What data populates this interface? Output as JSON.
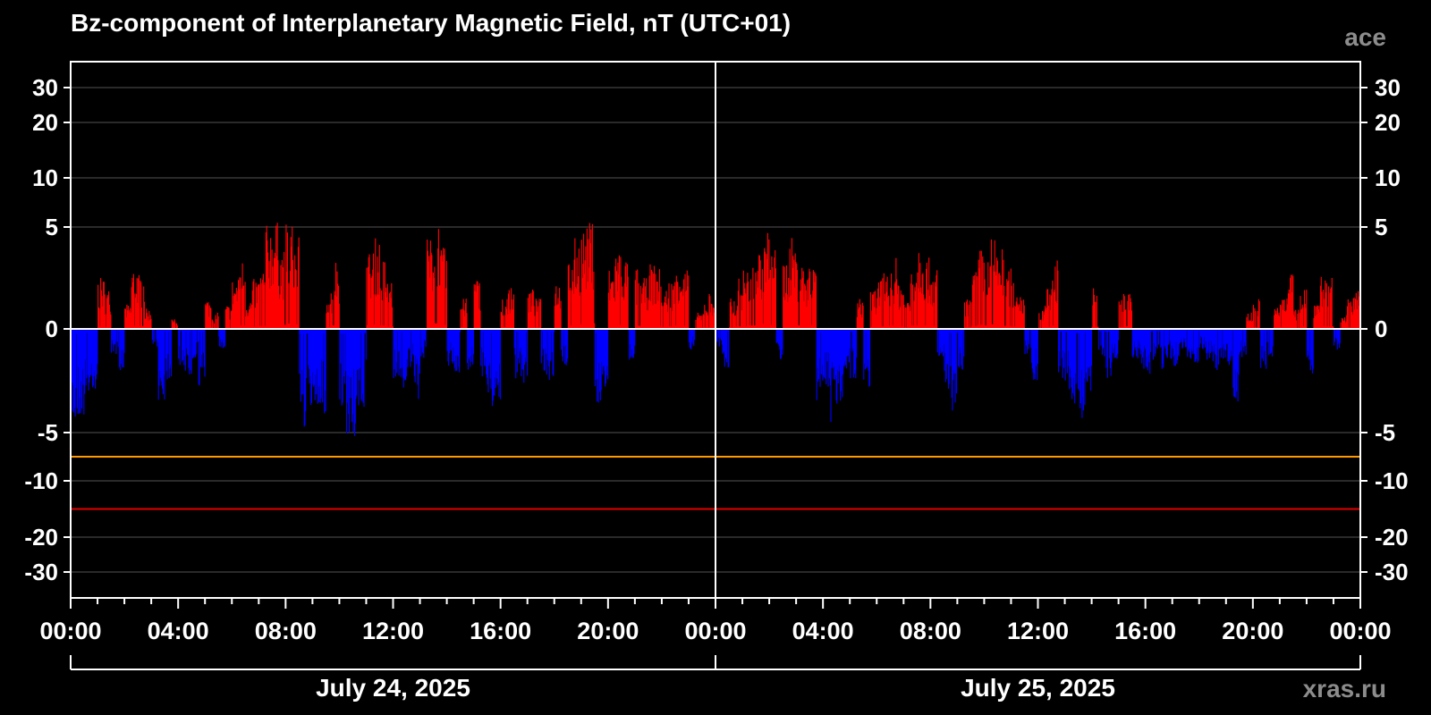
{
  "title": "Bz-component of Interplanetary Magnetic Field, nT (UTC+01)",
  "source_label": "ace",
  "site_label": "xras.ru",
  "colors": {
    "background": "#000000",
    "positive_bar": "#ff0000",
    "negative_bar": "#0000ff",
    "zero_line": "#ffffff",
    "grid": "#555555",
    "threshold_orange": "#ff9900",
    "threshold_red": "#e00000",
    "source_text": "#8c8c8c"
  },
  "chart_data": {
    "type": "bar",
    "title": "Bz-component of Interplanetary Magnetic Field, nT (UTC+01)",
    "xlabel": "",
    "ylabel": "",
    "y_scale": "compressed (symmetric, nonlinear)",
    "y_ticks": [
      30,
      20,
      10,
      5,
      0,
      -5,
      -10,
      -20,
      -30
    ],
    "y_tick_labels": [
      "30",
      "20",
      "10",
      "5",
      "0",
      "-5",
      "-10",
      "-20",
      "-30"
    ],
    "ylim": [
      -40,
      40
    ],
    "x_tick_labels": [
      "00:00",
      "04:00",
      "08:00",
      "12:00",
      "16:00",
      "20:00",
      "00:00",
      "04:00",
      "08:00",
      "12:00",
      "16:00",
      "20:00",
      "00:00"
    ],
    "x_range_hours": [
      0,
      48
    ],
    "day_labels": [
      "July 24, 2025",
      "July 25, 2025"
    ],
    "thresholds": [
      {
        "value": -7.5,
        "color": "#ff9900"
      },
      {
        "value": -15,
        "color": "#e00000"
      }
    ],
    "grid": true,
    "series": [
      {
        "values": [
          [
            0.0,
            -4.8
          ],
          [
            0.25,
            -4.3
          ],
          [
            0.5,
            -3.8
          ],
          [
            0.75,
            -3.0
          ],
          [
            1.0,
            2.5
          ],
          [
            1.25,
            2.0
          ],
          [
            1.5,
            -1.5
          ],
          [
            1.75,
            -2.0
          ],
          [
            2.0,
            1.2
          ],
          [
            2.25,
            3.2
          ],
          [
            2.5,
            2.8
          ],
          [
            2.75,
            1.0
          ],
          [
            3.0,
            -1.0
          ],
          [
            3.25,
            -3.5
          ],
          [
            3.5,
            -2.5
          ],
          [
            3.75,
            0.5
          ],
          [
            4.0,
            -1.8
          ],
          [
            4.25,
            -2.5
          ],
          [
            4.5,
            -1.5
          ],
          [
            4.75,
            -2.8
          ],
          [
            5.0,
            1.5
          ],
          [
            5.25,
            0.8
          ],
          [
            5.5,
            -1.0
          ],
          [
            5.75,
            1.2
          ],
          [
            6.0,
            2.5
          ],
          [
            6.25,
            3.5
          ],
          [
            6.5,
            1.5
          ],
          [
            6.75,
            2.5
          ],
          [
            7.0,
            3.0
          ],
          [
            7.25,
            5.2
          ],
          [
            7.5,
            5.5
          ],
          [
            7.75,
            4.0
          ],
          [
            8.0,
            5.3
          ],
          [
            8.25,
            4.5
          ],
          [
            8.5,
            -5.0
          ],
          [
            8.75,
            -4.5
          ],
          [
            9.0,
            -3.8
          ],
          [
            9.25,
            -4.2
          ],
          [
            9.5,
            2.0
          ],
          [
            9.75,
            3.5
          ],
          [
            10.0,
            -4.5
          ],
          [
            10.25,
            -5.2
          ],
          [
            10.5,
            -5.5
          ],
          [
            10.75,
            -4.0
          ],
          [
            11.0,
            3.8
          ],
          [
            11.25,
            4.5
          ],
          [
            11.5,
            3.5
          ],
          [
            11.75,
            2.5
          ],
          [
            12.0,
            -2.5
          ],
          [
            12.25,
            -3.0
          ],
          [
            12.5,
            -2.0
          ],
          [
            12.75,
            -3.5
          ],
          [
            13.0,
            -1.5
          ],
          [
            13.25,
            4.5
          ],
          [
            13.5,
            5.5
          ],
          [
            13.75,
            4.0
          ],
          [
            14.0,
            -1.8
          ],
          [
            14.25,
            -3.0
          ],
          [
            14.5,
            1.5
          ],
          [
            14.75,
            -2.2
          ],
          [
            15.0,
            2.5
          ],
          [
            15.25,
            -2.5
          ],
          [
            15.5,
            -4.0
          ],
          [
            15.75,
            -3.5
          ],
          [
            16.0,
            1.8
          ],
          [
            16.25,
            2.0
          ],
          [
            16.5,
            -2.5
          ],
          [
            16.75,
            -3.0
          ],
          [
            17.0,
            2.0
          ],
          [
            17.25,
            1.5
          ],
          [
            17.5,
            -2.5
          ],
          [
            17.75,
            -3.0
          ],
          [
            18.0,
            2.5
          ],
          [
            18.25,
            -1.8
          ],
          [
            18.5,
            3.5
          ],
          [
            18.75,
            4.5
          ],
          [
            19.0,
            5.0
          ],
          [
            19.25,
            5.5
          ],
          [
            19.5,
            -4.0
          ],
          [
            19.75,
            -3.0
          ],
          [
            20.0,
            3.0
          ],
          [
            20.25,
            4.0
          ],
          [
            20.5,
            3.5
          ],
          [
            20.75,
            -1.5
          ],
          [
            21.0,
            3.0
          ],
          [
            21.25,
            2.5
          ],
          [
            21.5,
            3.2
          ],
          [
            21.75,
            3.0
          ],
          [
            22.0,
            2.0
          ],
          [
            22.25,
            2.5
          ],
          [
            22.5,
            3.5
          ],
          [
            22.75,
            3.0
          ],
          [
            23.0,
            -1.0
          ],
          [
            23.25,
            0.8
          ],
          [
            23.5,
            1.5
          ],
          [
            23.75,
            1.8
          ],
          [
            24.0,
            -1.0
          ],
          [
            24.25,
            -2.0
          ],
          [
            24.5,
            1.5
          ],
          [
            24.75,
            2.5
          ],
          [
            25.0,
            3.0
          ],
          [
            25.25,
            3.5
          ],
          [
            25.5,
            4.0
          ],
          [
            25.75,
            5.0
          ],
          [
            26.0,
            4.0
          ],
          [
            26.25,
            -1.5
          ],
          [
            26.5,
            3.5
          ],
          [
            26.75,
            4.5
          ],
          [
            27.0,
            3.5
          ],
          [
            27.25,
            3.0
          ],
          [
            27.5,
            4.0
          ],
          [
            27.75,
            -3.5
          ],
          [
            28.0,
            -3.0
          ],
          [
            28.25,
            -4.5
          ],
          [
            28.5,
            -3.8
          ],
          [
            28.75,
            -2.0
          ],
          [
            29.0,
            -2.5
          ],
          [
            29.25,
            1.5
          ],
          [
            29.5,
            -3.0
          ],
          [
            29.75,
            2.0
          ],
          [
            30.0,
            2.5
          ],
          [
            30.25,
            3.0
          ],
          [
            30.5,
            3.5
          ],
          [
            30.75,
            2.5
          ],
          [
            31.0,
            1.5
          ],
          [
            31.25,
            3.5
          ],
          [
            31.5,
            4.5
          ],
          [
            31.75,
            3.5
          ],
          [
            32.0,
            3.0
          ],
          [
            32.25,
            -1.5
          ],
          [
            32.5,
            -3.0
          ],
          [
            32.75,
            -4.0
          ],
          [
            33.0,
            -2.0
          ],
          [
            33.25,
            1.5
          ],
          [
            33.5,
            3.0
          ],
          [
            33.75,
            4.0
          ],
          [
            34.0,
            3.5
          ],
          [
            34.25,
            4.5
          ],
          [
            34.5,
            4.0
          ],
          [
            34.75,
            3.0
          ],
          [
            35.0,
            2.5
          ],
          [
            35.25,
            1.8
          ],
          [
            35.5,
            -1.5
          ],
          [
            35.75,
            -2.5
          ],
          [
            36.0,
            1.0
          ],
          [
            36.25,
            2.0
          ],
          [
            36.5,
            3.5
          ],
          [
            36.75,
            -2.5
          ],
          [
            37.0,
            -3.0
          ],
          [
            37.25,
            -4.0
          ],
          [
            37.5,
            -4.5
          ],
          [
            37.75,
            -3.5
          ],
          [
            38.0,
            2.0
          ],
          [
            38.25,
            -2.0
          ],
          [
            38.5,
            -2.5
          ],
          [
            38.75,
            -1.5
          ],
          [
            39.0,
            1.8
          ],
          [
            39.25,
            2.5
          ],
          [
            39.5,
            -1.5
          ],
          [
            39.75,
            -2.0
          ],
          [
            40.0,
            -2.5
          ],
          [
            40.25,
            -1.8
          ],
          [
            40.5,
            -2.0
          ],
          [
            40.75,
            -1.5
          ],
          [
            41.0,
            -1.8
          ],
          [
            41.25,
            -1.2
          ],
          [
            41.5,
            -1.5
          ],
          [
            41.75,
            -1.8
          ],
          [
            42.0,
            -1.0
          ],
          [
            42.25,
            -1.5
          ],
          [
            42.5,
            -2.0
          ],
          [
            42.75,
            -1.5
          ],
          [
            43.0,
            -2.0
          ],
          [
            43.25,
            -3.5
          ],
          [
            43.5,
            -1.5
          ],
          [
            43.75,
            0.8
          ],
          [
            44.0,
            1.5
          ],
          [
            44.25,
            -2.0
          ],
          [
            44.5,
            -1.5
          ],
          [
            44.75,
            1.2
          ],
          [
            45.0,
            2.0
          ],
          [
            45.25,
            3.0
          ],
          [
            45.5,
            1.0
          ],
          [
            45.75,
            2.5
          ],
          [
            46.0,
            -2.5
          ],
          [
            46.25,
            1.5
          ],
          [
            46.5,
            3.0
          ],
          [
            46.75,
            2.5
          ],
          [
            47.0,
            -1.0
          ],
          [
            47.25,
            0.8
          ],
          [
            47.5,
            1.5
          ],
          [
            47.75,
            2.0
          ]
        ]
      }
    ]
  }
}
